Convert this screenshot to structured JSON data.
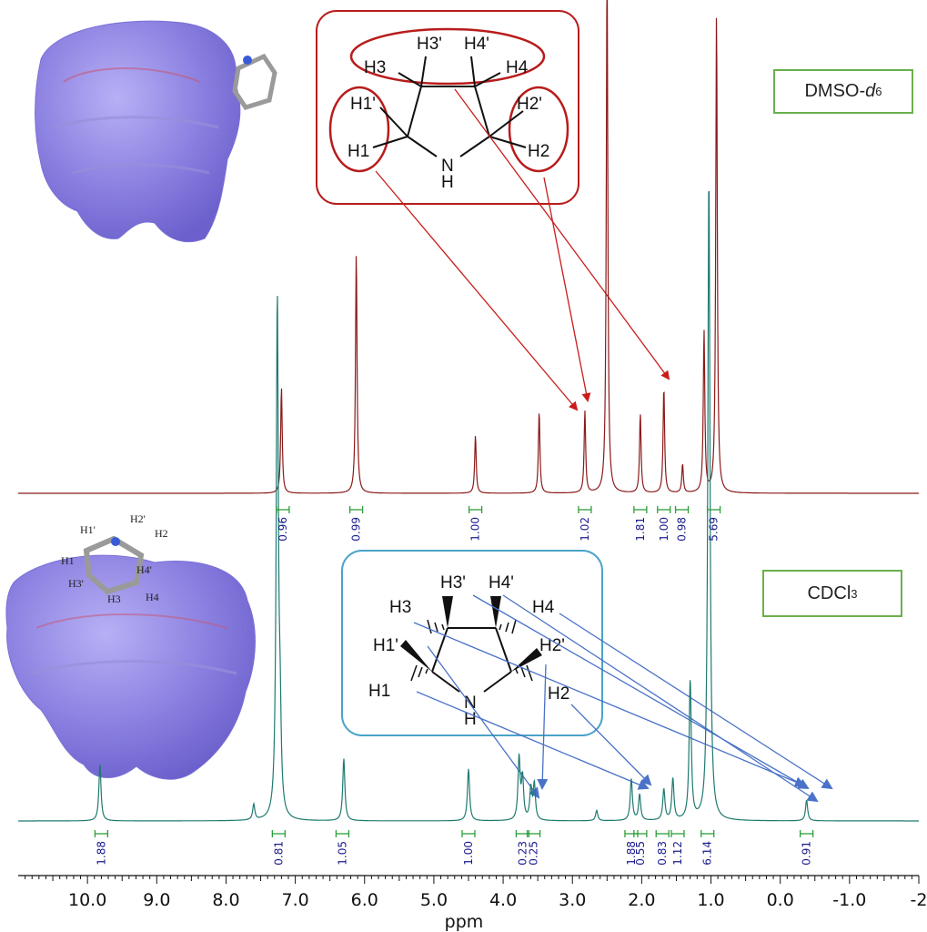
{
  "chart_data": {
    "type": "line",
    "title": "",
    "xlabel": "ppm",
    "ylabel": "",
    "xlim": [
      11.0,
      -2.0
    ],
    "x_direction": "reversed",
    "ticks": [
      "10.0",
      "9.0",
      "8.0",
      "7.0",
      "6.0",
      "5.0",
      "4.0",
      "3.0",
      "2.0",
      "1.0",
      "0.0",
      "-1.0",
      "-2"
    ],
    "tick_values": [
      10,
      9,
      8,
      7,
      6,
      5,
      4,
      3,
      2,
      1,
      0,
      -1,
      -2
    ],
    "series": [
      {
        "name": "DMSO-d6",
        "solvent_main": "DMSO-",
        "solvent_italic": "d",
        "solvent_sub": "6",
        "color": "#8b1a1a",
        "peaks": [
          {
            "ppm": 7.2,
            "height": 0.44
          },
          {
            "ppm": 6.12,
            "height": 1.0
          },
          {
            "ppm": 4.4,
            "height": 0.24
          },
          {
            "ppm": 3.48,
            "height": 0.34
          },
          {
            "ppm": 2.82,
            "height": 0.34
          },
          {
            "ppm": 2.5,
            "height": 2.2
          },
          {
            "ppm": 2.02,
            "height": 0.33
          },
          {
            "ppm": 1.68,
            "height": 0.44
          },
          {
            "ppm": 1.41,
            "height": 0.12
          },
          {
            "ppm": 1.1,
            "height": 0.67
          },
          {
            "ppm": 0.92,
            "height": 2.0
          }
        ],
        "integrals": [
          {
            "ppm": 7.18,
            "value": "0.96"
          },
          {
            "ppm": 6.12,
            "value": "0.99"
          },
          {
            "ppm": 4.4,
            "value": "1.00"
          },
          {
            "ppm": 2.82,
            "value": "1.02"
          },
          {
            "ppm": 2.02,
            "value": "1.81"
          },
          {
            "ppm": 1.68,
            "value": "1.00"
          },
          {
            "ppm": 1.42,
            "value": "0.98"
          },
          {
            "ppm": 0.96,
            "value": "5.69"
          }
        ]
      },
      {
        "name": "CDCl3",
        "solvent_main": "CDCl",
        "solvent_sub": "3",
        "color": "#1f7a70",
        "peaks": [
          {
            "ppm": 9.82,
            "height": 0.11
          },
          {
            "ppm": 7.6,
            "height": 0.03
          },
          {
            "ppm": 7.26,
            "height": 1.0
          },
          {
            "ppm": 7.22,
            "height": 0.15
          },
          {
            "ppm": 6.3,
            "height": 0.12
          },
          {
            "ppm": 4.5,
            "height": 0.1
          },
          {
            "ppm": 3.77,
            "height": 0.12
          },
          {
            "ppm": 3.72,
            "height": 0.08
          },
          {
            "ppm": 3.6,
            "height": 0.06
          },
          {
            "ppm": 3.55,
            "height": 0.07
          },
          {
            "ppm": 2.65,
            "height": 0.02
          },
          {
            "ppm": 2.15,
            "height": 0.08
          },
          {
            "ppm": 2.03,
            "height": 0.05
          },
          {
            "ppm": 1.68,
            "height": 0.06
          },
          {
            "ppm": 1.55,
            "height": 0.08
          },
          {
            "ppm": 1.3,
            "height": 0.27
          },
          {
            "ppm": 1.03,
            "height": 1.25
          },
          {
            "ppm": -0.38,
            "height": 0.04
          }
        ],
        "integrals": [
          {
            "ppm": 9.8,
            "value": "1.88"
          },
          {
            "ppm": 7.24,
            "value": "0.81"
          },
          {
            "ppm": 6.32,
            "value": "1.05"
          },
          {
            "ppm": 4.5,
            "value": "1.00"
          },
          {
            "ppm": 3.72,
            "value": "0.23"
          },
          {
            "ppm": 3.56,
            "value": "0.25"
          },
          {
            "ppm": 2.15,
            "value": "1.88"
          },
          {
            "ppm": 2.02,
            "value": "0.55"
          },
          {
            "ppm": 1.7,
            "value": "0.83"
          },
          {
            "ppm": 1.48,
            "value": "1.12"
          },
          {
            "ppm": 1.05,
            "value": "6.14"
          },
          {
            "ppm": -0.38,
            "value": "0.91"
          }
        ]
      }
    ]
  },
  "structures": {
    "top_labels": {
      "h3p": "H3'",
      "h4p": "H4'",
      "h3": "H3",
      "h4": "H4",
      "h1p": "H1'",
      "h2p": "H2'",
      "h1": "H1",
      "h2": "H2",
      "n": "N",
      "h": "H"
    },
    "bottom_labels": {
      "h3p": "H3'",
      "h4p": "H4'",
      "h3": "H3",
      "h4": "H4",
      "h1p": "H1'",
      "h2p": "H2'",
      "h1": "H1",
      "h2": "H2",
      "n": "N",
      "h": "H"
    },
    "model_labels": {
      "h1p": "H1'",
      "h2p": "H2'",
      "h2": "H2",
      "h1": "H1",
      "h3p": "H3'",
      "h4p": "H4'",
      "h3": "H3",
      "h4": "H4"
    }
  },
  "colors": {
    "dmso": "#8b1a1a",
    "cdcl3": "#1f7a70",
    "integral": "#2e9e3a",
    "highlight_red": "#b81c1c",
    "box_blue": "#4aa3c8",
    "arrow_blue": "#4a72c8",
    "arrow_red": "#c81c1c",
    "surface": "#8a7fe0"
  }
}
